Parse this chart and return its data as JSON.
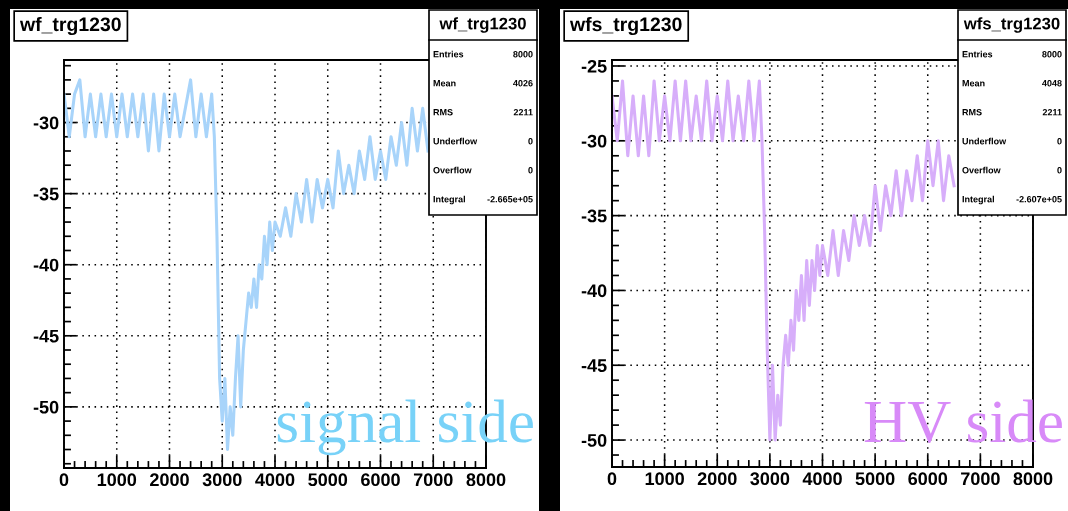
{
  "chart_data": [
    {
      "type": "line",
      "title": "wf_trg1230",
      "xlim": [
        0,
        8000
      ],
      "ylim": [
        -54.3,
        -25.6
      ],
      "xticks": [
        0,
        1000,
        2000,
        3000,
        4000,
        5000,
        6000,
        7000,
        8000
      ],
      "yticks": [
        -50,
        -45,
        -40,
        -35,
        -30
      ],
      "grid": true,
      "x": [
        0,
        100,
        200,
        300,
        400,
        500,
        600,
        700,
        800,
        900,
        1000,
        1100,
        1200,
        1300,
        1400,
        1500,
        1600,
        1700,
        1800,
        1900,
        2000,
        2100,
        2200,
        2400,
        2500,
        2600,
        2700,
        2800,
        2850,
        2900,
        2950,
        3000,
        3050,
        3100,
        3150,
        3200,
        3250,
        3300,
        3350,
        3400,
        3450,
        3500,
        3550,
        3600,
        3650,
        3700,
        3750,
        3800,
        3850,
        3900,
        3950,
        4000,
        4100,
        4200,
        4300,
        4400,
        4500,
        4600,
        4700,
        4800,
        4900,
        5000,
        5100,
        5200,
        5300,
        5400,
        5500,
        5600,
        5700,
        5800,
        5900,
        6000,
        6100,
        6200,
        6300,
        6400,
        6500,
        6600,
        6700,
        6800,
        6900
      ],
      "series": [
        {
          "color": "#a8d4fa",
          "values": [
            -28,
            -31,
            -28,
            -27,
            -31,
            -28,
            -31,
            -28,
            -31,
            -28,
            -31,
            -28,
            -31,
            -28,
            -31,
            -28,
            -32,
            -28,
            -32,
            -28,
            -31,
            -28,
            -31,
            -27,
            -31,
            -28,
            -31,
            -28,
            -31,
            -38,
            -48,
            -51,
            -48,
            -53,
            -50,
            -52,
            -48,
            -45,
            -50,
            -46,
            -44,
            -42,
            -43,
            -41,
            -43,
            -40,
            -41,
            -38,
            -40,
            -37,
            -39,
            -37,
            -38,
            -36,
            -38,
            -35,
            -37,
            -34,
            -37,
            -34,
            -36,
            -34,
            -36,
            -32,
            -35,
            -33,
            -35,
            -32,
            -34,
            -31,
            -34,
            -32,
            -34,
            -31,
            -33,
            -30,
            -33,
            -29,
            -32,
            -29,
            -32
          ]
        }
      ],
      "annotations": [
        "wf_trg1230",
        "Entries",
        "8000",
        "Mean",
        "4026",
        "RMS",
        "2211",
        "Underflow",
        "0",
        "Overflow",
        "0",
        "Integral",
        "-2.665e+05",
        "signal side"
      ]
    },
    {
      "type": "line",
      "title": "wfs_trg1230",
      "xlim": [
        0,
        8000
      ],
      "ylim": [
        -51.8,
        -24.6
      ],
      "xticks": [
        0,
        1000,
        2000,
        3000,
        4000,
        5000,
        6000,
        7000,
        8000
      ],
      "yticks": [
        -50,
        -45,
        -40,
        -35,
        -30,
        -25
      ],
      "grid": true,
      "x": [
        0,
        100,
        200,
        300,
        400,
        500,
        600,
        700,
        800,
        900,
        1000,
        1100,
        1200,
        1300,
        1400,
        1500,
        1600,
        1700,
        1800,
        1900,
        2000,
        2100,
        2200,
        2300,
        2400,
        2500,
        2600,
        2700,
        2800,
        2850,
        2900,
        2950,
        3000,
        3050,
        3100,
        3150,
        3200,
        3250,
        3300,
        3350,
        3400,
        3450,
        3500,
        3550,
        3600,
        3650,
        3700,
        3750,
        3800,
        3850,
        3900,
        3950,
        4000,
        4100,
        4200,
        4300,
        4400,
        4500,
        4600,
        4700,
        4800,
        4900,
        5000,
        5100,
        5200,
        5300,
        5400,
        5500,
        5600,
        5700,
        5800,
        5900,
        6000,
        6100,
        6200,
        6300,
        6400,
        6500
      ],
      "series": [
        {
          "color": "#d7aefa",
          "values": [
            -27,
            -30,
            -26,
            -31,
            -27,
            -31,
            -27,
            -31,
            -26,
            -30,
            -27,
            -30,
            -26,
            -30,
            -26,
            -30,
            -27,
            -30,
            -26,
            -30,
            -27,
            -30,
            -26,
            -30,
            -27,
            -30,
            -26,
            -30,
            -26,
            -30,
            -36,
            -44,
            -50,
            -45,
            -50,
            -47,
            -49,
            -45,
            -43,
            -45,
            -42,
            -44,
            -40,
            -42,
            -39,
            -42,
            -38,
            -41,
            -38,
            -40,
            -37,
            -39,
            -37,
            -39,
            -36,
            -39,
            -36,
            -38,
            -35,
            -37,
            -35,
            -37,
            -33,
            -36,
            -33,
            -35,
            -32,
            -35,
            -32,
            -34,
            -31,
            -34,
            -30,
            -33,
            -30,
            -34,
            -31,
            -33
          ]
        }
      ],
      "annotations": [
        "wfs_trg1230",
        "Entries",
        "8000",
        "Mean",
        "4048",
        "RMS",
        "2211",
        "Underflow",
        "0",
        "Overflow",
        "0",
        "Integral",
        "-2.607e+05",
        "HV side"
      ]
    }
  ]
}
